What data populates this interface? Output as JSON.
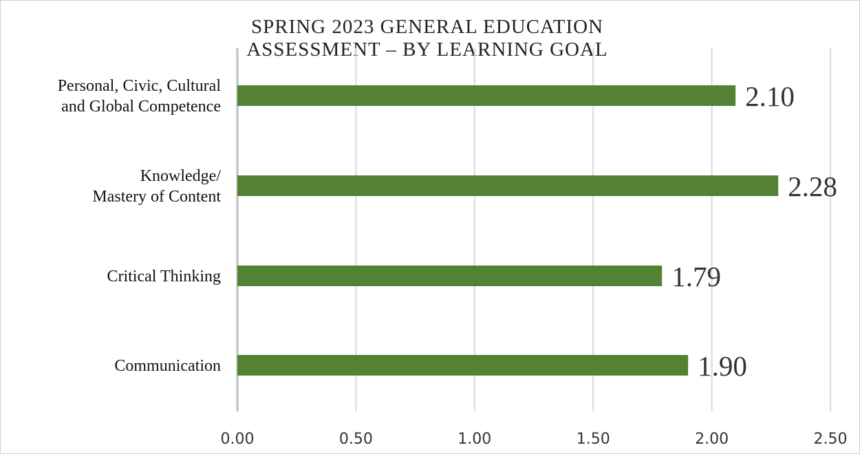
{
  "chart_data": {
    "type": "bar",
    "orientation": "horizontal",
    "title_lines": [
      "SPRING 2023 GENERAL EDUCATION",
      "ASSESSMENT – BY LEARNING GOAL"
    ],
    "categories": [
      [
        "Personal, Civic, Cultural",
        "and Global Competence"
      ],
      [
        "Knowledge/",
        "Mastery of Content"
      ],
      [
        "Critical Thinking"
      ],
      [
        "Communication"
      ]
    ],
    "values": [
      2.1,
      2.28,
      1.79,
      1.9
    ],
    "data_labels": [
      "2.10",
      "2.28",
      "1.79",
      "1.90"
    ],
    "x_ticks": [
      "0.00",
      "0.50",
      "1.00",
      "1.50",
      "2.00",
      "2.50"
    ],
    "xlim": [
      0,
      2.5
    ],
    "grid": true,
    "bar_color": "#548235",
    "grid_color": "#d9d9d9"
  }
}
